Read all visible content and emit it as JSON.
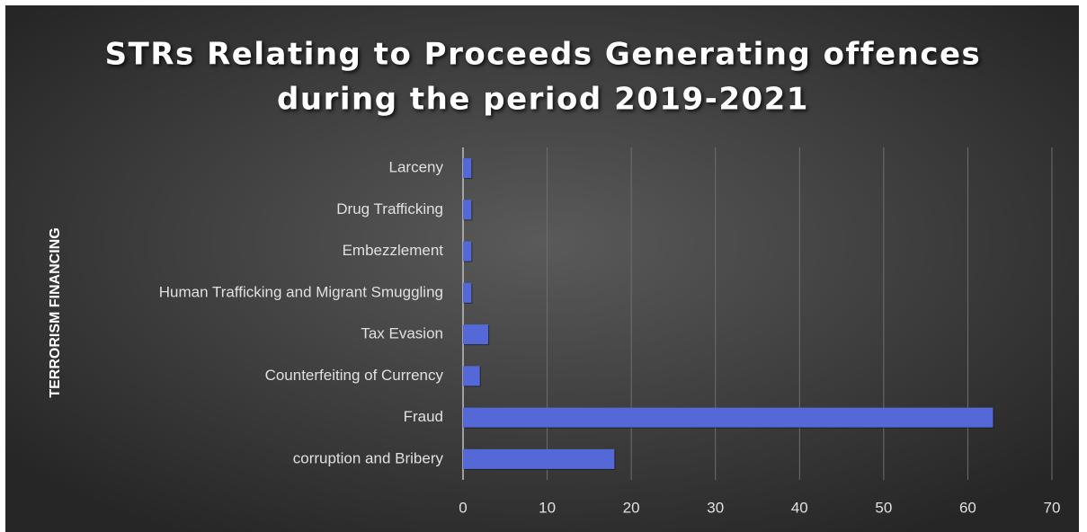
{
  "chart_data": {
    "type": "hbar",
    "title": "STRs Relating to Proceeds Generating offences during the period 2019-2021",
    "title_lines": [
      "STRs Relating to Proceeds Generating offences",
      "during the period 2019-2021"
    ],
    "y_label": "TERRORISM FINANCING",
    "categories": [
      "Larceny",
      "Drug Trafficking",
      "Embezzlement",
      "Human Trafficking and Migrant Smuggling",
      "Tax Evasion",
      "Counterfeiting of Currency",
      "Fraud",
      "corruption and Bribery"
    ],
    "values": [
      1,
      1,
      1,
      1,
      3,
      2,
      63,
      18
    ],
    "color": "#5468d8",
    "xlim": [
      0,
      70
    ],
    "xticks": [
      0,
      10,
      20,
      30,
      40,
      50,
      60,
      70
    ],
    "grid": true
  }
}
